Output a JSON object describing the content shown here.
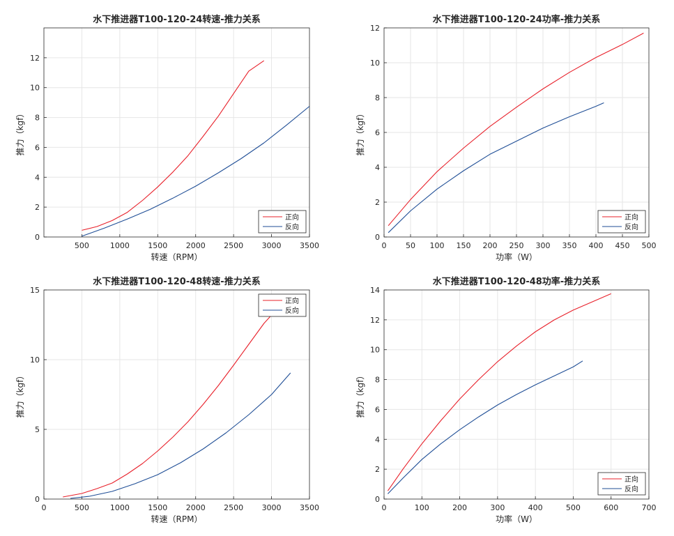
{
  "chart_data": [
    {
      "type": "line",
      "title": "水下推进器T100-120-24转速-推力关系",
      "xlabel": "转速（RPM）",
      "ylabel": "推力（kgf）",
      "xlim": [
        0,
        3500
      ],
      "ylim": [
        0,
        14
      ],
      "xticks": [
        500,
        1000,
        1500,
        2000,
        2500,
        3000,
        3500
      ],
      "xtick_labels": [
        "500",
        "1000",
        "1500",
        "2000",
        "2500",
        "3000",
        "3500"
      ],
      "yticks": [
        0,
        2,
        4,
        6,
        8,
        10,
        12
      ],
      "ytick_labels": [
        "0",
        "2",
        "4",
        "6",
        "8",
        "10",
        "12"
      ],
      "grid": true,
      "legend_position": "bottom-right",
      "series": [
        {
          "name": "正向",
          "color": "#e8202a",
          "x": [
            500,
            700,
            900,
            1100,
            1300,
            1500,
            1700,
            1900,
            2100,
            2300,
            2500,
            2700,
            2900
          ],
          "y": [
            0.45,
            0.7,
            1.1,
            1.65,
            2.45,
            3.35,
            4.35,
            5.45,
            6.75,
            8.1,
            9.6,
            11.1,
            11.8
          ]
        },
        {
          "name": "反向",
          "color": "#1f4e96",
          "x": [
            500,
            800,
            1100,
            1400,
            1700,
            2000,
            2300,
            2600,
            2900,
            3200,
            3500
          ],
          "y": [
            0.05,
            0.6,
            1.2,
            1.85,
            2.6,
            3.4,
            4.3,
            5.25,
            6.3,
            7.5,
            8.75
          ]
        }
      ]
    },
    {
      "type": "line",
      "title": "水下推进器T100-120-24功率-推力关系",
      "xlabel": "功率（W）",
      "ylabel": "推力（kgf）",
      "xlim": [
        0,
        500
      ],
      "ylim": [
        0,
        12
      ],
      "xticks": [
        0,
        50,
        100,
        150,
        200,
        250,
        300,
        350,
        400,
        450,
        500
      ],
      "xtick_labels": [
        "0",
        "50",
        "100",
        "150",
        "200",
        "250",
        "300",
        "350",
        "400",
        "450",
        "500"
      ],
      "yticks": [
        0,
        2,
        4,
        6,
        8,
        10,
        12
      ],
      "ytick_labels": [
        "0",
        "2",
        "4",
        "6",
        "8",
        "10",
        "12"
      ],
      "grid": true,
      "legend_position": "bottom-right",
      "series": [
        {
          "name": "正向",
          "color": "#e8202a",
          "x": [
            8,
            50,
            100,
            150,
            200,
            250,
            300,
            350,
            400,
            450,
            490
          ],
          "y": [
            0.65,
            2.15,
            3.75,
            5.1,
            6.35,
            7.45,
            8.5,
            9.45,
            10.3,
            11.05,
            11.7
          ]
        },
        {
          "name": "反向",
          "color": "#1f4e96",
          "x": [
            8,
            50,
            100,
            150,
            200,
            250,
            300,
            350,
            400,
            415
          ],
          "y": [
            0.25,
            1.5,
            2.75,
            3.8,
            4.75,
            5.5,
            6.25,
            6.9,
            7.5,
            7.7
          ]
        }
      ]
    },
    {
      "type": "line",
      "title": "水下推进器T100-120-48转速-推力关系",
      "xlabel": "转速（RPM）",
      "ylabel": "推力（kgf）",
      "xlim": [
        0,
        3500
      ],
      "ylim": [
        0,
        15
      ],
      "xticks": [
        0,
        500,
        1000,
        1500,
        2000,
        2500,
        3000,
        3500
      ],
      "xtick_labels": [
        "0",
        "500",
        "1000",
        "1500",
        "2000",
        "2500",
        "3000",
        "3500"
      ],
      "yticks": [
        0,
        5,
        10,
        15
      ],
      "ytick_labels": [
        "0",
        "5",
        "10",
        "15"
      ],
      "grid": true,
      "legend_position": "top-right",
      "series": [
        {
          "name": "正向",
          "color": "#e8202a",
          "x": [
            250,
            500,
            700,
            900,
            1100,
            1300,
            1500,
            1700,
            1900,
            2100,
            2300,
            2500,
            2700,
            2900,
            3000
          ],
          "y": [
            0.15,
            0.4,
            0.75,
            1.15,
            1.8,
            2.55,
            3.45,
            4.45,
            5.55,
            6.8,
            8.15,
            9.6,
            11.1,
            12.6,
            13.2
          ]
        },
        {
          "name": "反向",
          "color": "#1f4e96",
          "x": [
            350,
            600,
            900,
            1200,
            1500,
            1800,
            2100,
            2400,
            2700,
            3000,
            3250
          ],
          "y": [
            0.05,
            0.2,
            0.55,
            1.1,
            1.75,
            2.6,
            3.6,
            4.75,
            6.05,
            7.5,
            9.05
          ]
        }
      ]
    },
    {
      "type": "line",
      "title": "水下推进器T100-120-48功率-推力关系",
      "xlabel": "功率（W）",
      "ylabel": "推力（kgf）",
      "xlim": [
        0,
        700
      ],
      "ylim": [
        0,
        14
      ],
      "xticks": [
        0,
        100,
        200,
        300,
        400,
        500,
        600,
        700
      ],
      "xtick_labels": [
        "0",
        "100",
        "200",
        "300",
        "400",
        "500",
        "600",
        "700"
      ],
      "yticks": [
        0,
        2,
        4,
        6,
        8,
        10,
        12,
        14
      ],
      "ytick_labels": [
        "0",
        "2",
        "4",
        "6",
        "8",
        "10",
        "12",
        "14"
      ],
      "grid": true,
      "legend_position": "bottom-right",
      "series": [
        {
          "name": "正向",
          "color": "#e8202a",
          "x": [
            10,
            50,
            100,
            150,
            200,
            250,
            300,
            350,
            400,
            450,
            500,
            550,
            600
          ],
          "y": [
            0.55,
            2.0,
            3.7,
            5.25,
            6.7,
            8.0,
            9.2,
            10.25,
            11.2,
            12.0,
            12.65,
            13.2,
            13.75
          ]
        },
        {
          "name": "反向",
          "color": "#1f4e96",
          "x": [
            10,
            50,
            100,
            150,
            200,
            250,
            300,
            350,
            400,
            450,
            500,
            525
          ],
          "y": [
            0.35,
            1.4,
            2.65,
            3.7,
            4.65,
            5.5,
            6.3,
            7.0,
            7.65,
            8.25,
            8.85,
            9.25
          ]
        }
      ]
    }
  ]
}
